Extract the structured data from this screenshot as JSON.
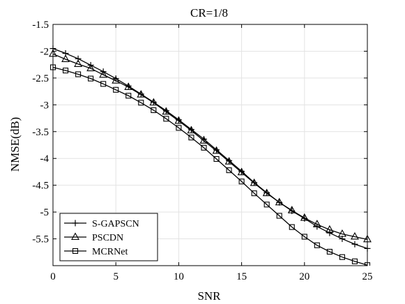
{
  "chart_data": {
    "type": "line",
    "title": "CR=1/8",
    "xlabel": "SNR",
    "ylabel": "NMSE(dB)",
    "xlim": [
      0,
      25
    ],
    "ylim": [
      -6.0,
      -1.5
    ],
    "xticks": [
      0,
      5,
      10,
      15,
      20,
      25
    ],
    "yticks": [
      -1.5,
      -2,
      -2.5,
      -3,
      -3.5,
      -4,
      -4.5,
      -5,
      -5.5
    ],
    "ytick_labels": [
      "-1.5",
      "-2",
      "-2.5",
      "-3",
      "-3.5",
      "-4",
      "-4.5",
      "-5",
      "-5.5"
    ],
    "grid": true,
    "legend_position": "bottom-left",
    "x": [
      0,
      1,
      2,
      3,
      4,
      5,
      6,
      7,
      8,
      9,
      10,
      11,
      12,
      13,
      14,
      15,
      16,
      17,
      18,
      19,
      20,
      21,
      22,
      23,
      24,
      25
    ],
    "series": [
      {
        "name": "S-GAPSCN",
        "marker": "plus",
        "values": [
          -1.95,
          -2.04,
          -2.14,
          -2.26,
          -2.38,
          -2.51,
          -2.65,
          -2.8,
          -2.95,
          -3.11,
          -3.28,
          -3.46,
          -3.64,
          -3.84,
          -4.04,
          -4.24,
          -4.45,
          -4.64,
          -4.82,
          -4.98,
          -5.12,
          -5.27,
          -5.39,
          -5.5,
          -5.6,
          -5.68
        ]
      },
      {
        "name": "PSCDN",
        "marker": "triangle",
        "values": [
          -2.05,
          -2.15,
          -2.24,
          -2.32,
          -2.44,
          -2.55,
          -2.67,
          -2.81,
          -2.96,
          -3.13,
          -3.3,
          -3.48,
          -3.67,
          -3.86,
          -4.06,
          -4.26,
          -4.46,
          -4.65,
          -4.82,
          -4.97,
          -5.11,
          -5.23,
          -5.33,
          -5.41,
          -5.46,
          -5.51
        ]
      },
      {
        "name": "MCRNet",
        "marker": "square",
        "values": [
          -2.3,
          -2.36,
          -2.43,
          -2.51,
          -2.61,
          -2.72,
          -2.83,
          -2.96,
          -3.1,
          -3.26,
          -3.43,
          -3.61,
          -3.8,
          -4.01,
          -4.22,
          -4.43,
          -4.65,
          -4.86,
          -5.07,
          -5.28,
          -5.46,
          -5.62,
          -5.74,
          -5.84,
          -5.92,
          -5.99
        ]
      }
    ]
  }
}
